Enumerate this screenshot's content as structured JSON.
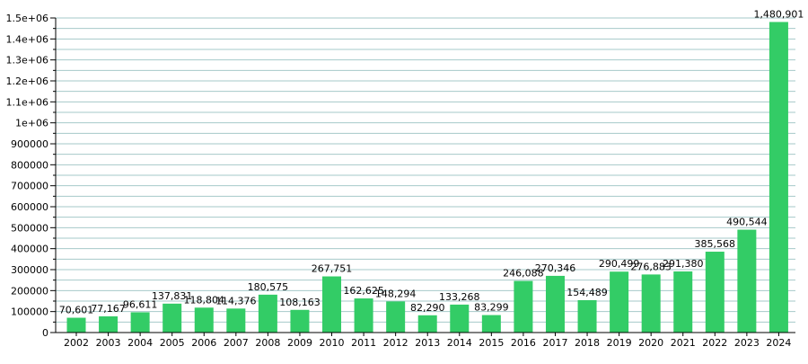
{
  "chart_data": {
    "type": "bar",
    "categories": [
      "2002",
      "2003",
      "2004",
      "2005",
      "2006",
      "2007",
      "2008",
      "2009",
      "2010",
      "2011",
      "2012",
      "2013",
      "2014",
      "2015",
      "2016",
      "2017",
      "2018",
      "2019",
      "2020",
      "2021",
      "2022",
      "2023",
      "2024"
    ],
    "values": [
      70601,
      77167,
      96611,
      137831,
      118804,
      114376,
      180575,
      108163,
      267751,
      162625,
      148294,
      82290,
      133268,
      83299,
      246088,
      270346,
      154489,
      290499,
      276883,
      291380,
      385568,
      490544,
      1480901
    ],
    "value_labels": [
      "70,601",
      "77,167",
      "96,611",
      "137,831",
      "118,804",
      "114,376",
      "180,575",
      "108,163",
      "267,751",
      "162,625",
      "148,294",
      "82,290",
      "133,268",
      "83,299",
      "246,088",
      "270,346",
      "154,489",
      "290,499",
      "276,883",
      "291,380",
      "385,568",
      "490,544",
      "1,480,901"
    ],
    "ylim": [
      0,
      1500000
    ],
    "yticks": [
      0,
      100000,
      200000,
      300000,
      400000,
      500000,
      600000,
      700000,
      800000,
      900000,
      1000000,
      1100000,
      1200000,
      1300000,
      1400000,
      1500000
    ],
    "ytick_labels": [
      "0",
      "100000",
      "200000",
      "300000",
      "400000",
      "500000",
      "600000",
      "700000",
      "800000",
      "900000",
      "1e+06",
      "1.1e+06",
      "1.2e+06",
      "1.3e+06",
      "1.4e+06",
      "1.5e+06"
    ],
    "grid": "horizontal",
    "title": "",
    "xlabel": "",
    "ylabel": "",
    "colors": {
      "bar": "#33cc66",
      "grid": "#a6c9c9",
      "axis": "#000000"
    }
  }
}
